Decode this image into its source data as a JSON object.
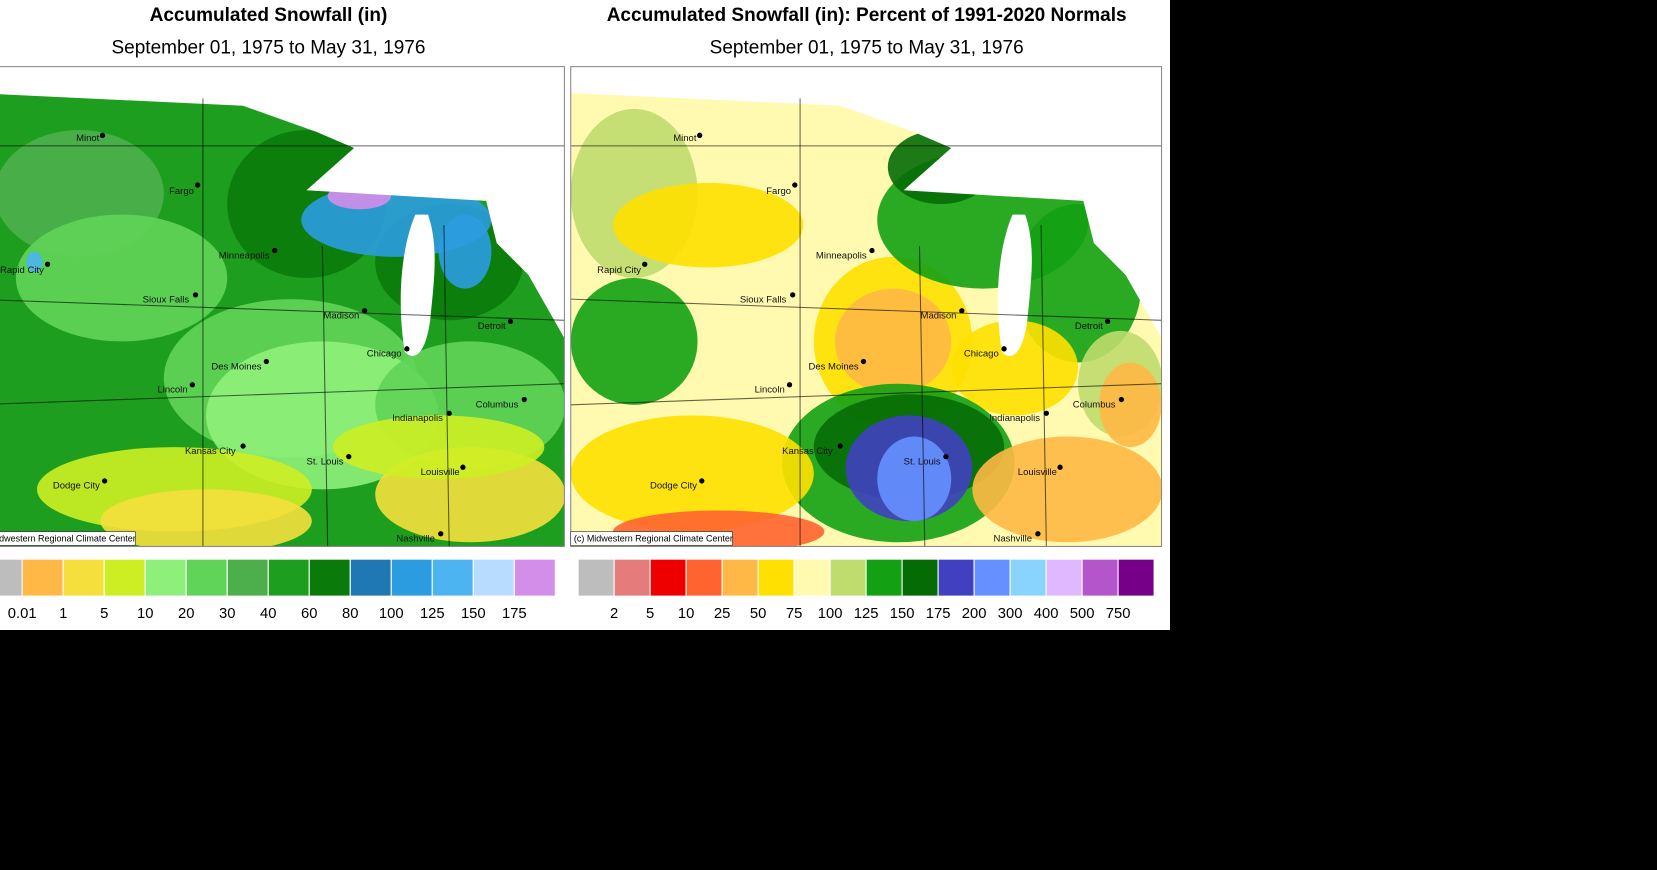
{
  "panels": [
    {
      "title": "Accumulated Snowfall (in)",
      "subtitle": "September 01, 1975 to May 31, 1976",
      "credit": "(c) Midwestern Regional Climate Center",
      "legend": {
        "colors": [
          "#bdbdbd",
          "#ffb845",
          "#f5df3d",
          "#cdee23",
          "#8ef07a",
          "#60d458",
          "#4caf4c",
          "#1e9e1e",
          "#0a7a0a",
          "#1f77b4",
          "#2b9ce0",
          "#4cb4f0",
          "#b8dcff",
          "#d28ee8"
        ],
        "labels": [
          0.01,
          1,
          5,
          10,
          20,
          30,
          40,
          60,
          80,
          100,
          125,
          150,
          175
        ]
      }
    },
    {
      "title": "Accumulated Snowfall (in): Percent of 1991-2020 Normals",
      "subtitle": "September 01, 1975 to May 31, 1976",
      "credit": "(c) Midwestern Regional Climate Center",
      "legend": {
        "colors": [
          "#bdbdbd",
          "#e57b7b",
          "#ee0000",
          "#ff6330",
          "#ffb845",
          "#ffe000",
          "#fffab0",
          "#bfdc6e",
          "#13a013",
          "#056b05",
          "#4040c0",
          "#6690ff",
          "#88d4ff",
          "#e0b8ff",
          "#b455cc",
          "#770088"
        ],
        "labels": [
          2,
          5,
          10,
          25,
          50,
          75,
          100,
          125,
          150,
          175,
          200,
          300,
          400,
          500,
          750
        ]
      }
    }
  ],
  "cities": [
    "Minot",
    "Fargo",
    "Minneapolis",
    "Rapid City",
    "Sioux Falls",
    "Madison",
    "Detroit",
    "Chicago",
    "Des Moines",
    "Lincoln",
    "Columbus",
    "Indianapolis",
    "Kansas City",
    "St. Louis",
    "Louisville",
    "Dodge City",
    "Nashville"
  ]
}
